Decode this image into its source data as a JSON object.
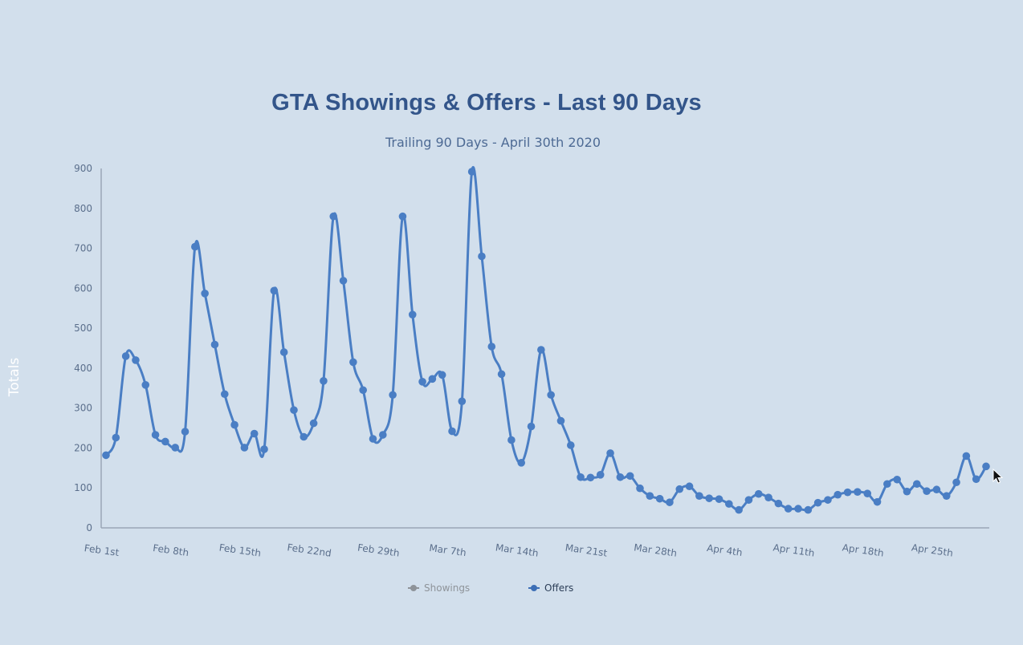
{
  "chart_data": {
    "type": "line",
    "title": "GTA Showings & Offers - Last 90 Days",
    "subtitle": "Trailing 90 Days - April 30th 2020",
    "ylabel": "Totals",
    "xlabel": "",
    "ylim": [
      0,
      900
    ],
    "yticks": [
      0,
      100,
      200,
      300,
      400,
      500,
      600,
      700,
      800,
      900
    ],
    "xtick_labels": [
      "Feb 1st",
      "Feb 8th",
      "Feb 15th",
      "Feb 22nd",
      "Feb 29th",
      "Mar 7th",
      "Mar 14th",
      "Mar 21st",
      "Mar 28th",
      "Apr 4th",
      "Apr 11th",
      "Apr 18th",
      "Apr 25th"
    ],
    "x_start": "Feb 1st",
    "grid": false,
    "legend_position": "bottom",
    "series": [
      {
        "name": "Showings",
        "color": "#8e9399",
        "hidden": true,
        "values": []
      },
      {
        "name": "Offers",
        "color": "#4a7ec4",
        "values": [
          182,
          226,
          430,
          420,
          358,
          233,
          216,
          201,
          241,
          704,
          587,
          459,
          335,
          258,
          201,
          236,
          197,
          594,
          440,
          295,
          228,
          262,
          368,
          780,
          619,
          415,
          345,
          223,
          233,
          333,
          780,
          534,
          366,
          373,
          383,
          242,
          317,
          892,
          680,
          454,
          385,
          220,
          163,
          254,
          446,
          333,
          268,
          207,
          127,
          126,
          133,
          187,
          127,
          130,
          99,
          80,
          73,
          64,
          97,
          104,
          80,
          74,
          72,
          60,
          45,
          70,
          85,
          76,
          61,
          48,
          48,
          45,
          63,
          70,
          83,
          89,
          90,
          86,
          65,
          110,
          121,
          91,
          110,
          92,
          96,
          80,
          114,
          180,
          122,
          154
        ]
      }
    ]
  },
  "cursor": {
    "icon": "mouse-pointer-icon"
  }
}
